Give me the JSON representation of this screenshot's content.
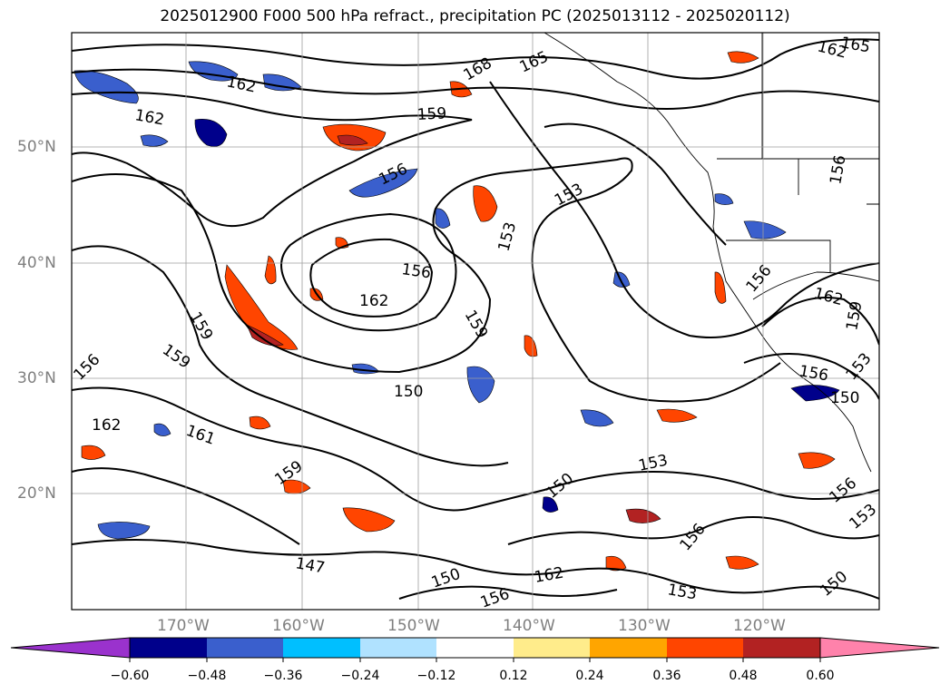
{
  "title": "2025012900 F000 500 hPa refract., precipitation PC (2025013112 - 2025020112)",
  "map": {
    "lat_labels": [
      "50°N",
      "40°N",
      "30°N",
      "20°N"
    ],
    "lon_labels": [
      "170°W",
      "160°W",
      "150°W",
      "140°W",
      "130°W",
      "120°W"
    ],
    "contour_labels": [
      "165",
      "162",
      "162",
      "162",
      "168",
      "165",
      "159",
      "156",
      "153",
      "153",
      "156",
      "156",
      "162",
      "159",
      "159",
      "156",
      "150",
      "162",
      "161",
      "159",
      "153",
      "159",
      "156",
      "153",
      "162",
      "150",
      "147",
      "150",
      "156",
      "153",
      "156",
      "156",
      "150",
      "162",
      "159",
      "156",
      "150",
      "153"
    ]
  },
  "colorbar": {
    "colors": [
      "#9a32cd",
      "#00008b",
      "#3a5fcd",
      "#00bfff",
      "#b0e2ff",
      "#ffffff",
      "#ffec8b",
      "#ffa500",
      "#ff4500",
      "#b22222",
      "#ff82ab"
    ],
    "tick_labels": [
      "−0.60",
      "−0.48",
      "−0.36",
      "−0.24",
      "−0.12",
      "0.12",
      "0.24",
      "0.36",
      "0.48",
      "0.60"
    ]
  }
}
